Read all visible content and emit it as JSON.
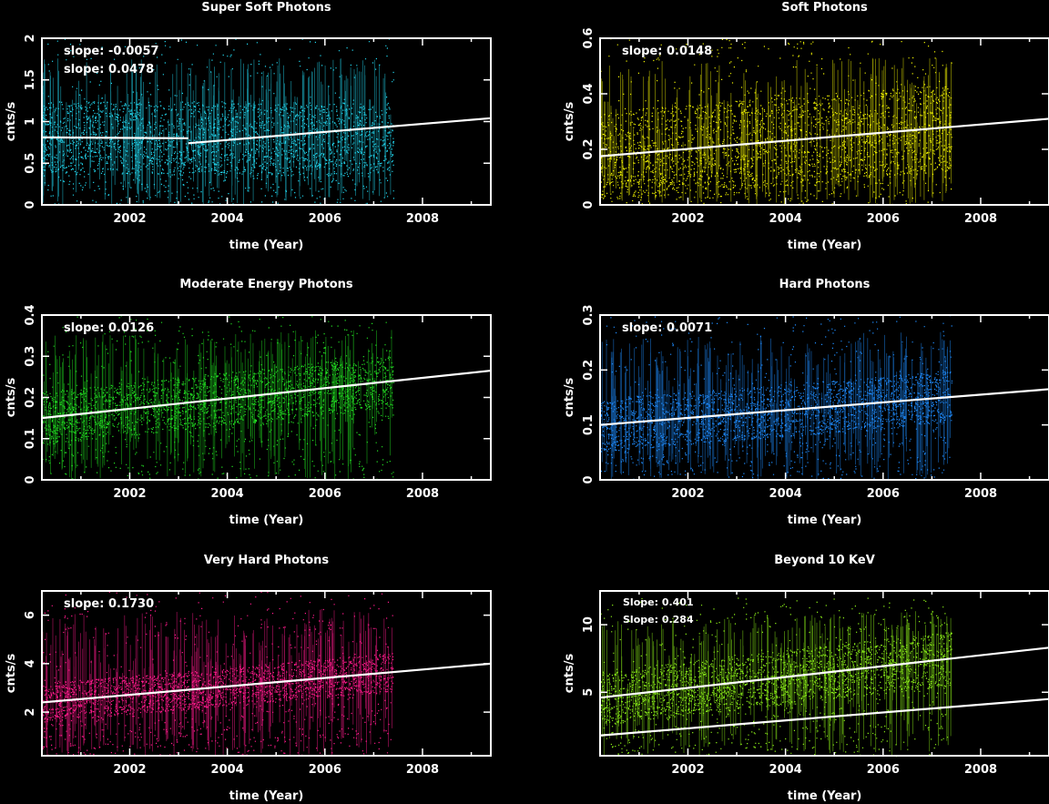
{
  "panels": [
    {
      "title": "Super Soft Photons",
      "xlabel": "time (Year)",
      "ylabel": "cnts/s",
      "color": "#22d8f0",
      "xlim": [
        2000.2,
        2009.4
      ],
      "ylim": [
        0,
        2
      ],
      "yticks": [
        "0",
        "0.5",
        "1",
        "1.5",
        "2"
      ],
      "ytick_values": [
        0,
        0.5,
        1,
        1.5,
        2
      ],
      "xticks": [
        "2002",
        "2004",
        "2006",
        "2008"
      ],
      "xtick_values": [
        2002,
        2004,
        2006,
        2008
      ],
      "data_end": 2007.4,
      "band": {
        "low": 0.35,
        "high": 1.25,
        "spread": 0.55,
        "hi_spike": 2.0
      },
      "slope_labels": [
        "slope: -0.0057",
        "slope: 0.0478"
      ],
      "fits": [
        {
          "x": [
            2000.2,
            2003.2
          ],
          "y": [
            0.81,
            0.8
          ]
        },
        {
          "x": [
            2003.2,
            2009.4
          ],
          "y": [
            0.74,
            1.04
          ]
        }
      ]
    },
    {
      "title": "Soft Photons",
      "xlabel": "time (Year)",
      "ylabel": "cnts/s",
      "color": "#eef000",
      "xlim": [
        2000.2,
        2009.4
      ],
      "ylim": [
        0,
        0.6
      ],
      "yticks": [
        "0",
        "0.2",
        "0.4",
        "0.6"
      ],
      "ytick_values": [
        0,
        0.2,
        0.4,
        0.6
      ],
      "xticks": [
        "2002",
        "2004",
        "2006",
        "2008"
      ],
      "xtick_values": [
        2002,
        2004,
        2006,
        2008
      ],
      "data_end": 2007.4,
      "band": {
        "low": 0.05,
        "high": 0.35,
        "spread": 0.2,
        "hi_spike": 0.6
      },
      "slope_labels": [
        "slope: 0.0148"
      ],
      "fits": [
        {
          "x": [
            2000.2,
            2009.4
          ],
          "y": [
            0.175,
            0.31
          ]
        }
      ]
    },
    {
      "title": "Moderate Energy Photons",
      "xlabel": "time (Year)",
      "ylabel": "cnts/s",
      "color": "#22e022",
      "xlim": [
        2000.2,
        2009.4
      ],
      "ylim": [
        0,
        0.4
      ],
      "yticks": [
        "0",
        "0.1",
        "0.2",
        "0.3",
        "0.4"
      ],
      "ytick_values": [
        0,
        0.1,
        0.2,
        0.3,
        0.4
      ],
      "xticks": [
        "2002",
        "2004",
        "2006",
        "2008"
      ],
      "xtick_values": [
        2002,
        2004,
        2006,
        2008
      ],
      "data_end": 2007.4,
      "band": {
        "low": 0.11,
        "high": 0.26,
        "spread": 0.08,
        "hi_spike": 0.4
      },
      "slope_labels": [
        "slope: 0.0126"
      ],
      "fits": [
        {
          "x": [
            2000.2,
            2009.4
          ],
          "y": [
            0.15,
            0.265
          ]
        }
      ]
    },
    {
      "title": "Hard Photons",
      "xlabel": "time (Year)",
      "ylabel": "cnts/s",
      "color": "#1e8cff",
      "xlim": [
        2000.2,
        2009.4
      ],
      "ylim": [
        0,
        0.3
      ],
      "yticks": [
        "0",
        "0.1",
        "0.2",
        "0.3"
      ],
      "ytick_values": [
        0,
        0.1,
        0.2,
        0.3
      ],
      "xticks": [
        "2002",
        "2004",
        "2006",
        "2008"
      ],
      "xtick_values": [
        2002,
        2004,
        2006,
        2008
      ],
      "data_end": 2007.4,
      "band": {
        "low": 0.07,
        "high": 0.17,
        "spread": 0.06,
        "hi_spike": 0.3
      },
      "slope_labels": [
        "slope: 0.0071"
      ],
      "fits": [
        {
          "x": [
            2000.2,
            2009.4
          ],
          "y": [
            0.1,
            0.165
          ]
        }
      ]
    },
    {
      "title": "Very Hard  Photons",
      "xlabel": "time (Year)",
      "ylabel": "cnts/s",
      "color": "#ff1a8c",
      "xlim": [
        2000.2,
        2009.4
      ],
      "ylim": [
        0.2,
        7
      ],
      "yticks": [
        "2",
        "4",
        "6"
      ],
      "ytick_values": [
        2,
        4,
        6
      ],
      "xticks": [
        "2002",
        "2004",
        "2006",
        "2008"
      ],
      "xtick_values": [
        2002,
        2004,
        2006,
        2008
      ],
      "data_end": 2007.4,
      "band": {
        "low": 2.2,
        "high": 4.0,
        "spread": 1.0,
        "hi_spike": 7.0
      },
      "slope_labels": [
        "slope: 0.1730"
      ],
      "fits": [
        {
          "x": [
            2000.2,
            2009.4
          ],
          "y": [
            2.4,
            4.0
          ]
        }
      ]
    },
    {
      "title": "Beyond 10 KeV",
      "xlabel": "time (Year)",
      "ylabel": "cnts/s",
      "color": "#8cf018",
      "xlim": [
        2000.2,
        2009.4
      ],
      "ylim": [
        0.3,
        12.5
      ],
      "yticks": [
        "5",
        "10"
      ],
      "ytick_values": [
        5,
        10
      ],
      "xticks": [
        "2002",
        "2004",
        "2006",
        "2008"
      ],
      "xtick_values": [
        2002,
        2004,
        2006,
        2008
      ],
      "data_end": 2007.4,
      "band": {
        "low": 3.5,
        "high": 9.5,
        "spread": 2.5,
        "hi_spike": 12.0
      },
      "slope_labels": [
        "Slope: 0.401",
        "Slope: 0.284"
      ],
      "fits": [
        {
          "x": [
            2000.2,
            2009.4
          ],
          "y": [
            4.6,
            8.3
          ]
        },
        {
          "x": [
            2000.2,
            2009.4
          ],
          "y": [
            1.8,
            4.5
          ]
        }
      ]
    }
  ],
  "chart_data": [
    {
      "type": "scatter",
      "title": "Super Soft Photons",
      "xlabel": "time (Year)",
      "ylabel": "cnts/s",
      "xlim": [
        2000.2,
        2009.4
      ],
      "ylim": [
        0,
        2
      ],
      "annotations": [
        "slope: -0.0057",
        "slope: 0.0478"
      ],
      "fit_lines": [
        {
          "x": [
            2000.2,
            2003.2
          ],
          "y": [
            0.81,
            0.8
          ]
        },
        {
          "x": [
            2003.2,
            2009.4
          ],
          "y": [
            0.74,
            1.04
          ]
        }
      ],
      "grid": false
    },
    {
      "type": "scatter",
      "title": "Soft Photons",
      "xlabel": "time (Year)",
      "ylabel": "cnts/s",
      "xlim": [
        2000.2,
        2009.4
      ],
      "ylim": [
        0,
        0.6
      ],
      "annotations": [
        "slope: 0.0148"
      ],
      "fit_lines": [
        {
          "x": [
            2000.2,
            2009.4
          ],
          "y": [
            0.175,
            0.31
          ]
        }
      ],
      "grid": false
    },
    {
      "type": "scatter",
      "title": "Moderate Energy Photons",
      "xlabel": "time (Year)",
      "ylabel": "cnts/s",
      "xlim": [
        2000.2,
        2009.4
      ],
      "ylim": [
        0,
        0.4
      ],
      "annotations": [
        "slope: 0.0126"
      ],
      "fit_lines": [
        {
          "x": [
            2000.2,
            2009.4
          ],
          "y": [
            0.15,
            0.265
          ]
        }
      ],
      "grid": false
    },
    {
      "type": "scatter",
      "title": "Hard Photons",
      "xlabel": "time (Year)",
      "ylabel": "cnts/s",
      "xlim": [
        2000.2,
        2009.4
      ],
      "ylim": [
        0,
        0.3
      ],
      "annotations": [
        "slope: 0.0071"
      ],
      "fit_lines": [
        {
          "x": [
            2000.2,
            2009.4
          ],
          "y": [
            0.1,
            0.165
          ]
        }
      ],
      "grid": false
    },
    {
      "type": "scatter",
      "title": "Very Hard  Photons",
      "xlabel": "time (Year)",
      "ylabel": "cnts/s",
      "xlim": [
        2000.2,
        2009.4
      ],
      "ylim": [
        0.2,
        7
      ],
      "annotations": [
        "slope: 0.1730"
      ],
      "fit_lines": [
        {
          "x": [
            2000.2,
            2009.4
          ],
          "y": [
            2.4,
            4.0
          ]
        }
      ],
      "grid": false
    },
    {
      "type": "scatter",
      "title": "Beyond 10 KeV",
      "xlabel": "time (Year)",
      "ylabel": "cnts/s",
      "xlim": [
        2000.2,
        2009.4
      ],
      "ylim": [
        0.3,
        12.5
      ],
      "annotations": [
        "Slope: 0.401",
        "Slope: 0.284"
      ],
      "fit_lines": [
        {
          "x": [
            2000.2,
            2009.4
          ],
          "y": [
            4.6,
            8.3
          ]
        },
        {
          "x": [
            2000.2,
            2009.4
          ],
          "y": [
            1.8,
            4.5
          ]
        }
      ],
      "grid": false
    }
  ]
}
